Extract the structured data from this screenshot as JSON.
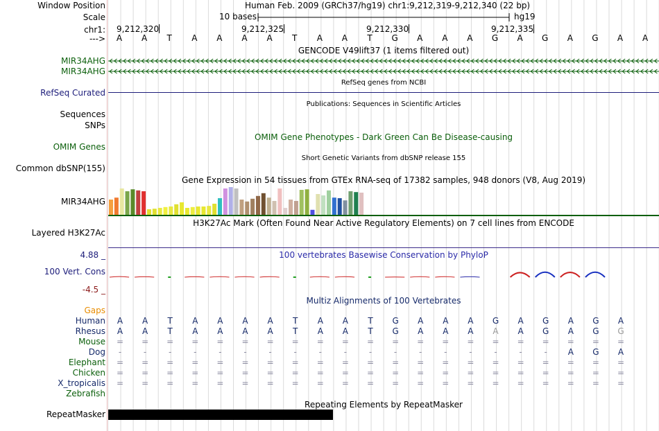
{
  "labels": {
    "window_position": "Window Position",
    "scale": "Scale",
    "chr": "chr1:",
    "arrow": "--->",
    "gencode_1": "MIR34AHG",
    "gencode_2": "MIR34AHG",
    "refseq": "RefSeq Curated",
    "sequences": "Sequences",
    "snps": "SNPs",
    "omim": "OMIM Genes",
    "dbsnp": "Common dbSNP(155)",
    "gtex": "MIR34AHG",
    "h3k27ac": "Layered H3K27Ac",
    "phylop_max": "4.88 _",
    "phylop": "100 Vert. Cons",
    "phylop_min": "-4.5 _",
    "gaps": "Gaps",
    "repeatmasker": "RepeatMasker"
  },
  "header": {
    "position_text": "Human Feb. 2009 (GRCh37/hg19)   chr1:9,212,319-9,212,340 (22 bp)",
    "scale_text": "10 bases",
    "assembly": "hg19",
    "ruler_ticks": [
      "9,212,320",
      "9,212,325",
      "9,212,330",
      "9,212,335"
    ]
  },
  "bases": [
    "A",
    "A",
    "T",
    "A",
    "A",
    "A",
    "A",
    "T",
    "A",
    "A",
    "T",
    "G",
    "A",
    "A",
    "A",
    "G",
    "A",
    "G",
    "A",
    "G",
    "A",
    "A"
  ],
  "tracks": {
    "gencode_title": "GENCODE V49lift37 (1 items filtered out)",
    "refseq_title": "RefSeq genes from NCBI",
    "publications_title": "Publications: Sequences in Scientific Articles",
    "omim_title": "OMIM Gene Phenotypes - Dark Green Can Be Disease-causing",
    "dbsnp_title": "Short Genetic Variants from dbSNP release 155",
    "gtex_title": "Gene Expression in 54 tissues from GTEx RNA-seq of 17382 samples, 948 donors (V8, Aug 2019)",
    "h3k27ac_title": "H3K27Ac Mark (Often Found Near Active Regulatory Elements) on 7 cell lines from ENCODE",
    "phylop_title": "100 vertebrates Basewise Conservation by PhyloP",
    "multiz_title": "Multiz Alignments of 100 Vertebrates",
    "repeat_title": "Repeating Elements by RepeatMasker"
  },
  "gtex_bars": [
    {
      "v": 0.55,
      "c": "#f5a040"
    },
    {
      "v": 0.62,
      "c": "#f07a30"
    },
    {
      "v": 0.95,
      "c": "#e7e7a0"
    },
    {
      "v": 0.85,
      "c": "#7aa64a"
    },
    {
      "v": 0.92,
      "c": "#5a8a2a"
    },
    {
      "v": 0.88,
      "c": "#c04040"
    },
    {
      "v": 0.85,
      "c": "#e03030"
    },
    {
      "v": 0.2,
      "c": "#e0e030"
    },
    {
      "v": 0.22,
      "c": "#e0e030"
    },
    {
      "v": 0.25,
      "c": "#e8e840"
    },
    {
      "v": 0.28,
      "c": "#f0f040"
    },
    {
      "v": 0.3,
      "c": "#e8e840"
    },
    {
      "v": 0.38,
      "c": "#e0e030"
    },
    {
      "v": 0.45,
      "c": "#e8e830"
    },
    {
      "v": 0.25,
      "c": "#e8e830"
    },
    {
      "v": 0.28,
      "c": "#eded40"
    },
    {
      "v": 0.3,
      "c": "#e8e830"
    },
    {
      "v": 0.3,
      "c": "#e8e830"
    },
    {
      "v": 0.32,
      "c": "#e8e840"
    },
    {
      "v": 0.4,
      "c": "#e0e030"
    },
    {
      "v": 0.6,
      "c": "#30c0c0"
    },
    {
      "v": 0.95,
      "c": "#d090e0"
    },
    {
      "v": 1.0,
      "c": "#b0b0e8"
    },
    {
      "v": 0.95,
      "c": "#c0c0c0"
    },
    {
      "v": 0.55,
      "c": "#c0a080"
    },
    {
      "v": 0.48,
      "c": "#b09070"
    },
    {
      "v": 0.58,
      "c": "#a08060"
    },
    {
      "v": 0.68,
      "c": "#906848"
    },
    {
      "v": 0.78,
      "c": "#705030"
    },
    {
      "v": 0.62,
      "c": "#c0b090"
    },
    {
      "v": 0.5,
      "c": "#d0c0b0"
    },
    {
      "v": 0.95,
      "c": "#f0c0c0"
    },
    {
      "v": 0.25,
      "c": "#e0d0d0"
    },
    {
      "v": 0.55,
      "c": "#d0b0a0"
    },
    {
      "v": 0.5,
      "c": "#c0a090"
    },
    {
      "v": 0.9,
      "c": "#a0c060"
    },
    {
      "v": 0.92,
      "c": "#90b040"
    },
    {
      "v": 0.18,
      "c": "#5050e0"
    },
    {
      "v": 0.75,
      "c": "#e0e0b0"
    },
    {
      "v": 0.7,
      "c": "#c0e0c0"
    },
    {
      "v": 0.88,
      "c": "#a0d0a0"
    },
    {
      "v": 0.62,
      "c": "#3070d0"
    },
    {
      "v": 0.6,
      "c": "#2050a0"
    },
    {
      "v": 0.52,
      "c": "#8090a0"
    },
    {
      "v": 0.85,
      "c": "#70a070"
    },
    {
      "v": 0.82,
      "c": "#208050"
    },
    {
      "v": 0.8,
      "c": "#e0c0c0"
    }
  ],
  "phylop_scores": [
    -0.6,
    -0.4,
    0.1,
    -0.4,
    -0.5,
    -0.5,
    -0.5,
    0.1,
    -0.5,
    -0.5,
    0.1,
    -0.2,
    -0.5,
    -0.5,
    -0.4,
    0.0,
    2.2,
    2.4,
    2.3,
    2.4,
    0.0,
    0.0
  ],
  "multiz": [
    {
      "species": "Human",
      "color": "#162a6a",
      "row": [
        "A",
        "A",
        "T",
        "A",
        "A",
        "A",
        "A",
        "T",
        "A",
        "A",
        "T",
        "G",
        "A",
        "A",
        "A",
        "G",
        "A",
        "G",
        "A",
        "G",
        "A",
        ""
      ]
    },
    {
      "species": "Rhesus",
      "color": "#162a6a",
      "row": [
        "A",
        "A",
        "T",
        "A",
        "A",
        "A",
        "A",
        "T",
        "A",
        "A",
        "T",
        "G",
        "A",
        "A",
        "A",
        "A",
        "A",
        "G",
        "A",
        "G",
        "G",
        ""
      ]
    },
    {
      "species": "Mouse",
      "color": "#0b5f0b",
      "row": [
        "=",
        "=",
        "=",
        "=",
        "=",
        "=",
        "=",
        "=",
        "=",
        "=",
        "=",
        "=",
        "=",
        "=",
        "=",
        "=",
        "=",
        "=",
        "=",
        "=",
        "=",
        ""
      ]
    },
    {
      "species": "Dog",
      "color": "#162a6a",
      "row": [
        "-",
        "-",
        "-",
        "-",
        "-",
        "-",
        "-",
        "-",
        "-",
        "-",
        "-",
        "-",
        "-",
        "-",
        "-",
        "-",
        "-",
        "-",
        "A",
        "G",
        "A",
        ""
      ]
    },
    {
      "species": "Elephant",
      "color": "#0b5f0b",
      "row": [
        "=",
        "=",
        "=",
        "=",
        "=",
        "=",
        "=",
        "=",
        "=",
        "=",
        "=",
        "=",
        "=",
        "=",
        "=",
        "=",
        "=",
        "=",
        "=",
        "=",
        "=",
        ""
      ]
    },
    {
      "species": "Chicken",
      "color": "#0b5f0b",
      "row": [
        "=",
        "=",
        "=",
        "=",
        "=",
        "=",
        "=",
        "=",
        "=",
        "=",
        "=",
        "=",
        "=",
        "=",
        "=",
        "=",
        "=",
        "=",
        "=",
        "=",
        "=",
        ""
      ]
    },
    {
      "species": "X_tropicalis",
      "color": "#162a6a",
      "row": [
        "=",
        "=",
        "=",
        "=",
        "=",
        "=",
        "=",
        "=",
        "=",
        "=",
        "=",
        "=",
        "=",
        "=",
        "=",
        "=",
        "=",
        "=",
        "=",
        "=",
        "=",
        ""
      ]
    },
    {
      "species": "Zebrafish",
      "color": "#0b5f0b",
      "row": [
        "",
        "",
        "",
        "",
        "",
        "",
        "",
        "",
        "",
        "",
        "",
        "",
        "",
        "",
        "",
        "",
        "",
        "",
        "",
        "",
        "",
        ""
      ]
    }
  ]
}
